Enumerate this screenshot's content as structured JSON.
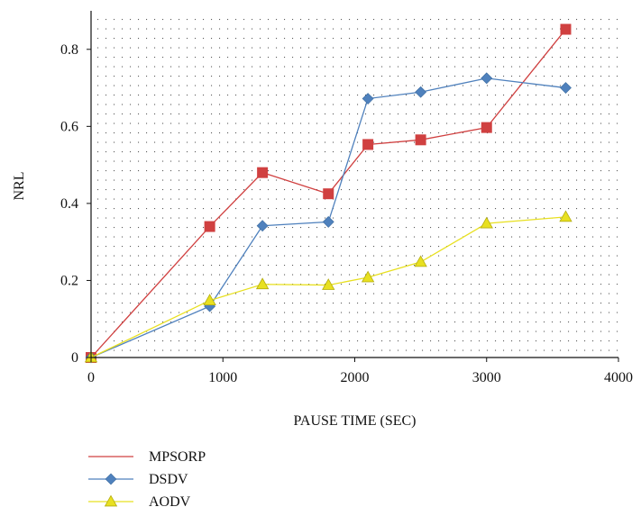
{
  "chart_data": {
    "type": "line",
    "title": "",
    "xlabel": "PAUSE TIME (SEC)",
    "ylabel": "NRL",
    "xlim": [
      0,
      4000
    ],
    "ylim": [
      0,
      0.9
    ],
    "xticks": [
      0,
      1000,
      2000,
      3000,
      4000
    ],
    "xtick_labels": [
      "0",
      "1000",
      "2000",
      "3000",
      "4000"
    ],
    "yticks": [
      0,
      0.2,
      0.4,
      0.6,
      0.8
    ],
    "ytick_labels": [
      "0",
      "0.2",
      "0.4",
      "0.6",
      "0.8"
    ],
    "grid": "dotted",
    "legend_position": "bottom-left",
    "series": [
      {
        "name": "MPSORP",
        "color": "#d04040",
        "marker": "square",
        "legend_marker": "none",
        "x": [
          0,
          900,
          1300,
          1800,
          2100,
          2500,
          3000,
          3600
        ],
        "y": [
          0.0,
          0.34,
          0.48,
          0.425,
          0.553,
          0.565,
          0.597,
          0.852
        ]
      },
      {
        "name": "DSDV",
        "color": "#4f81bd",
        "marker": "diamond",
        "legend_marker": "diamond",
        "x": [
          0,
          900,
          1300,
          1800,
          2100,
          2500,
          3000,
          3600
        ],
        "y": [
          0.0,
          0.133,
          0.342,
          0.352,
          0.672,
          0.689,
          0.725,
          0.7
        ]
      },
      {
        "name": "AODV",
        "color": "#e8e020",
        "marker": "triangle",
        "legend_marker": "triangle",
        "x": [
          0,
          900,
          1300,
          1800,
          2100,
          2500,
          3000,
          3600
        ],
        "y": [
          0.0,
          0.148,
          0.19,
          0.188,
          0.208,
          0.248,
          0.348,
          0.365
        ]
      }
    ]
  }
}
